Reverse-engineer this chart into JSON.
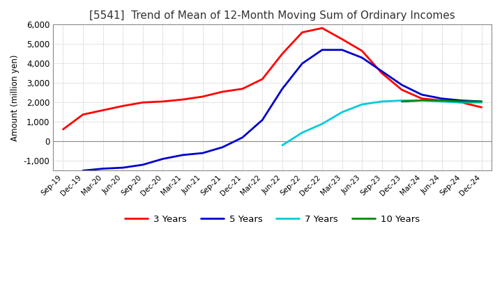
{
  "title": "[5541]  Trend of Mean of 12-Month Moving Sum of Ordinary Incomes",
  "ylabel": "Amount (million yen)",
  "ylim": [
    -1500,
    6000
  ],
  "yticks": [
    -1000,
    0,
    1000,
    2000,
    3000,
    4000,
    5000,
    6000
  ],
  "legend_labels": [
    "3 Years",
    "5 Years",
    "7 Years",
    "10 Years"
  ],
  "legend_colors": [
    "#ff0000",
    "#0000cc",
    "#00ccdd",
    "#008800"
  ],
  "x_labels": [
    "Sep-19",
    "Dec-19",
    "Mar-20",
    "Jun-20",
    "Sep-20",
    "Dec-20",
    "Mar-21",
    "Jun-21",
    "Sep-21",
    "Dec-21",
    "Mar-22",
    "Jun-22",
    "Sep-22",
    "Dec-22",
    "Mar-23",
    "Jun-23",
    "Sep-23",
    "Dec-23",
    "Mar-24",
    "Jun-24",
    "Sep-24",
    "Dec-24"
  ],
  "series_3y": [
    620,
    1380,
    1600,
    1820,
    2000,
    2050,
    2150,
    2300,
    2550,
    2700,
    3200,
    4500,
    5600,
    5820,
    5250,
    4650,
    3500,
    2650,
    2200,
    2100,
    2000,
    1750
  ],
  "series_5y": [
    null,
    -1500,
    -1400,
    -1350,
    -1200,
    -900,
    -700,
    -600,
    -300,
    200,
    1100,
    2700,
    4000,
    4700,
    4700,
    4300,
    3600,
    2900,
    2400,
    2200,
    2100,
    2050
  ],
  "series_7y": [
    null,
    null,
    null,
    null,
    null,
    null,
    null,
    null,
    null,
    null,
    null,
    -200,
    450,
    900,
    1500,
    1900,
    2050,
    2100,
    2100,
    2050,
    2000,
    2000
  ],
  "series_10y": [
    null,
    null,
    null,
    null,
    null,
    null,
    null,
    null,
    null,
    null,
    null,
    null,
    null,
    null,
    null,
    null,
    null,
    2050,
    2100,
    2100,
    2050,
    2050
  ],
  "background_color": "#ffffff",
  "grid_color": "#aaaaaa",
  "title_fontsize": 11,
  "line_width": 2.0
}
